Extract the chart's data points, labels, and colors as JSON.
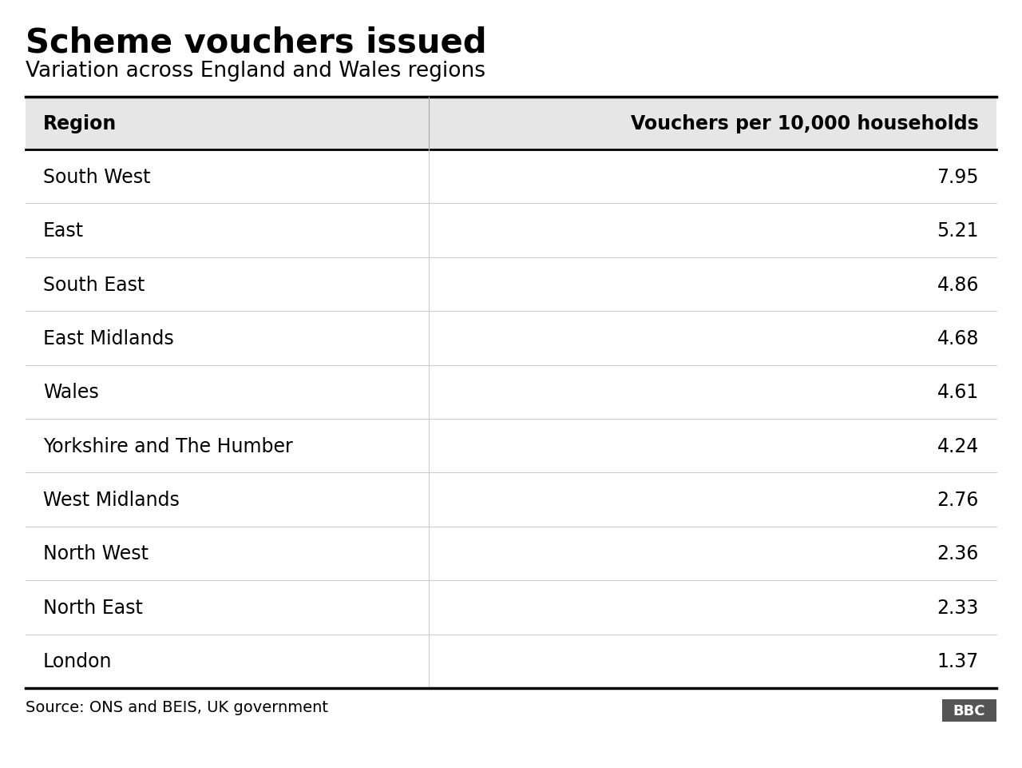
{
  "title": "Scheme vouchers issued",
  "subtitle": "Variation across England and Wales regions",
  "col1_header": "Region",
  "col2_header": "Vouchers per 10,000 households",
  "rows": [
    [
      "South West",
      "7.95"
    ],
    [
      "East",
      "5.21"
    ],
    [
      "South East",
      "4.86"
    ],
    [
      "East Midlands",
      "4.68"
    ],
    [
      "Wales",
      "4.61"
    ],
    [
      "Yorkshire and The Humber",
      "4.24"
    ],
    [
      "West Midlands",
      "2.76"
    ],
    [
      "North West",
      "2.36"
    ],
    [
      "North East",
      "2.33"
    ],
    [
      "London",
      "1.37"
    ]
  ],
  "source_text": "Source: ONS and BEIS, UK government",
  "bbc_text": "BBC",
  "bg_color": "#ffffff",
  "header_bg_color": "#e6e6e6",
  "row_line_color": "#cccccc",
  "header_line_color": "#000000",
  "text_color": "#000000",
  "title_fontsize": 30,
  "subtitle_fontsize": 19,
  "header_fontsize": 17,
  "cell_fontsize": 17,
  "source_fontsize": 14,
  "col_split": 0.415
}
